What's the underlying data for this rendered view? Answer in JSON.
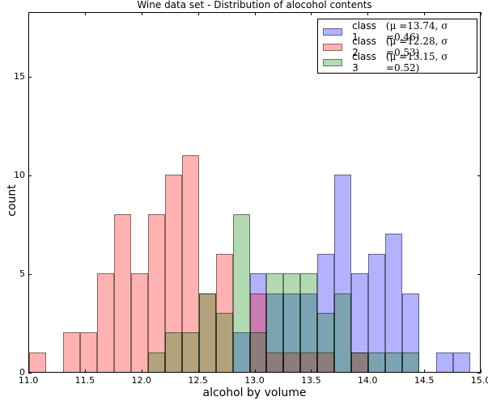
{
  "chart_data": {
    "type": "bar",
    "title": "Wine data set - Distribution of alocohol contents",
    "xlabel": "alcohol by volume",
    "ylabel": "count",
    "xlim": [
      11.0,
      15.0
    ],
    "ylim": [
      0,
      18.3
    ],
    "bin_width": 0.15,
    "bin_starts": [
      11.0,
      11.15,
      11.3,
      11.45,
      11.6,
      11.75,
      11.9,
      12.05,
      12.2,
      12.35,
      12.5,
      12.65,
      12.8,
      12.95,
      13.1,
      13.25,
      13.4,
      13.55,
      13.7,
      13.85,
      14.0,
      14.15,
      14.3,
      14.45,
      14.6,
      14.75
    ],
    "xticks": [
      "11.0",
      "11.5",
      "12.0",
      "12.5",
      "13.0",
      "13.5",
      "14.0",
      "14.5",
      "15.0"
    ],
    "yticks": [
      "0",
      "5",
      "10",
      "15"
    ],
    "grid": false,
    "legend_position": "upper right",
    "series": [
      {
        "name": "class 1",
        "mu": "13.74",
        "sigma": "0.46",
        "color": "#0000ff",
        "values": [
          0,
          0,
          0,
          0,
          0,
          0,
          0,
          0,
          0,
          0,
          0,
          0,
          2,
          5,
          4,
          4,
          4,
          6,
          10,
          5,
          6,
          7,
          4,
          0,
          1,
          1
        ]
      },
      {
        "name": "class 2",
        "mu": "12.28",
        "sigma": "0.53",
        "color": "#ff0000",
        "values": [
          1,
          0,
          2,
          2,
          5,
          8,
          5,
          8,
          10,
          11,
          4,
          6,
          0,
          4,
          1,
          1,
          1,
          1,
          0,
          1,
          0,
          0,
          0,
          0,
          0,
          0
        ]
      },
      {
        "name": "class 3",
        "mu": "13.15",
        "sigma": "0.52",
        "color": "#008000",
        "values": [
          0,
          0,
          0,
          0,
          0,
          0,
          0,
          1,
          2,
          2,
          4,
          3,
          8,
          2,
          5,
          5,
          5,
          3,
          4,
          1,
          1,
          1,
          1,
          0,
          0,
          0
        ]
      }
    ]
  },
  "legend": {
    "items": [
      {
        "label": "class 1",
        "stats": "(μ =13.74, σ =0.46)"
      },
      {
        "label": "class 2",
        "stats": "(μ =12.28, σ =0.53)"
      },
      {
        "label": "class 3",
        "stats": "(μ =13.15, σ =0.52)"
      }
    ]
  }
}
